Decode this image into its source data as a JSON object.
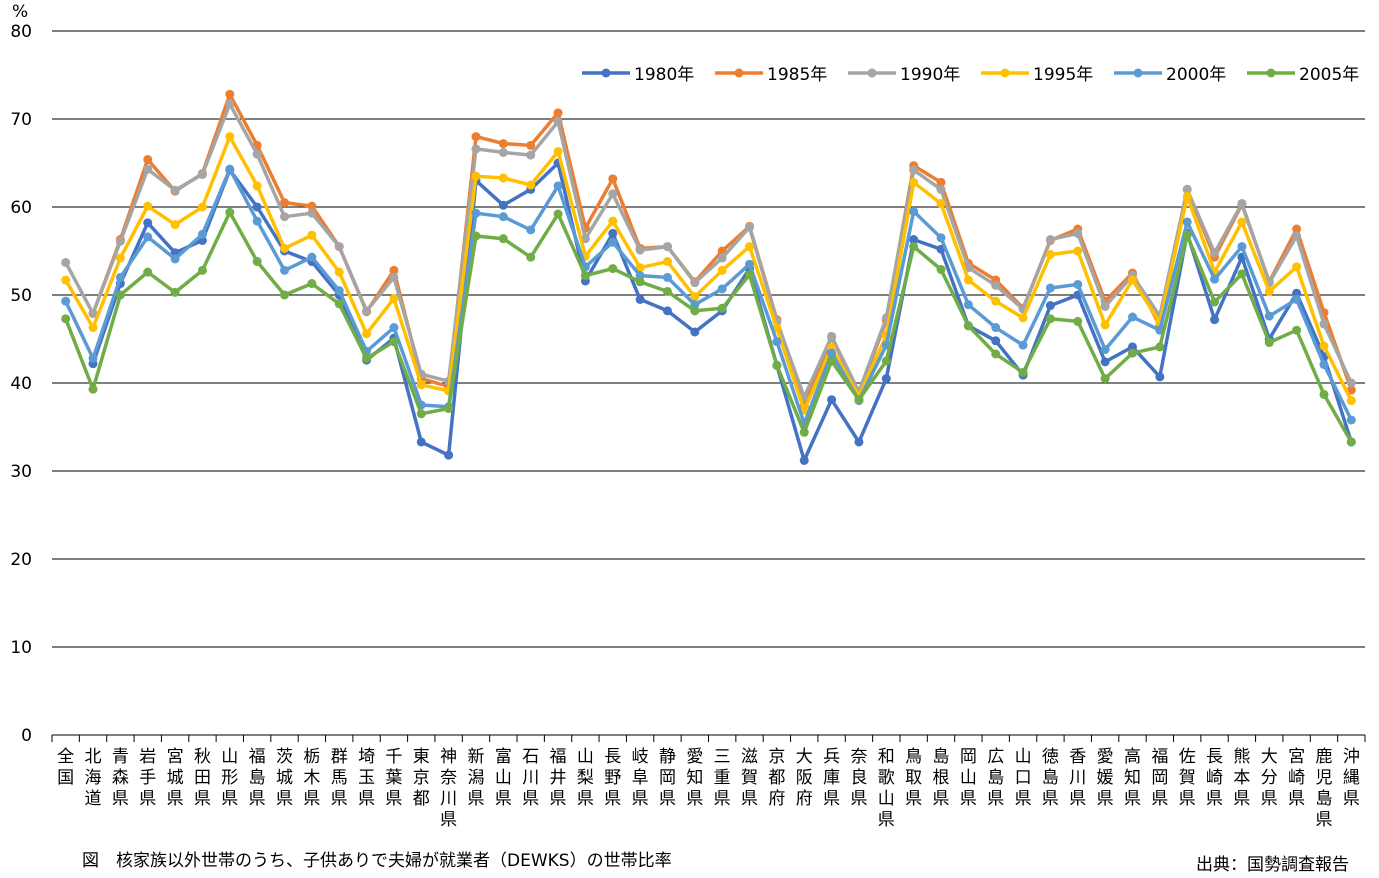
{
  "unit_label": "%",
  "caption": "図　核家族以外世帯のうち、子供ありで夫婦が就業者（DEWKS）の世帯比率",
  "source": "出典：国勢調査報告",
  "chart_data": {
    "type": "line",
    "ylabel": "%",
    "ylim": [
      0,
      80
    ],
    "yticks": [
      0,
      10,
      20,
      30,
      40,
      50,
      60,
      70,
      80
    ],
    "grid": true,
    "legend_position": "top-right",
    "categories": [
      "全国",
      "北海道",
      "青森県",
      "岩手県",
      "宮城県",
      "秋田県",
      "山形県",
      "福島県",
      "茨城県",
      "栃木県",
      "群馬県",
      "埼玉県",
      "千葉県",
      "東京都",
      "神奈川県",
      "新潟県",
      "富山県",
      "石川県",
      "福井県",
      "山梨県",
      "長野県",
      "岐阜県",
      "静岡県",
      "愛知県",
      "三重県",
      "滋賀県",
      "京都府",
      "大阪府",
      "兵庫県",
      "奈良県",
      "和歌山県",
      "鳥取県",
      "島根県",
      "岡山県",
      "広島県",
      "山口県",
      "徳島県",
      "香川県",
      "愛媛県",
      "高知県",
      "福岡県",
      "佐賀県",
      "長崎県",
      "熊本県",
      "大分県",
      "宮崎県",
      "鹿児島県",
      "沖縄県"
    ],
    "series": [
      {
        "name": "1980年",
        "color": "#4472C4",
        "values": [
          null,
          42.2,
          51.3,
          58.2,
          54.8,
          56.2,
          64.2,
          60.0,
          55.0,
          53.8,
          50.0,
          42.6,
          45.1,
          33.3,
          31.8,
          63.0,
          60.2,
          62.0,
          65.0,
          51.6,
          57.0,
          49.5,
          48.2,
          45.8,
          48.2,
          53.0,
          42.0,
          31.2,
          38.1,
          33.3,
          40.5,
          56.3,
          55.2,
          46.5,
          44.8,
          40.9,
          48.8,
          50.0,
          42.4,
          44.1,
          40.7,
          57.0,
          47.2,
          54.3,
          45.0,
          50.2,
          43.0,
          33.3
        ]
      },
      {
        "name": "1985年",
        "color": "#ED7D31",
        "values": [
          null,
          47.9,
          56.3,
          65.4,
          61.8,
          63.8,
          72.8,
          67.0,
          60.5,
          60.1,
          55.5,
          48.1,
          52.8,
          40.5,
          39.6,
          68.0,
          67.2,
          67.0,
          70.7,
          57.6,
          63.2,
          55.3,
          55.5,
          51.5,
          55.0,
          57.8,
          47.2,
          37.4,
          45.2,
          38.8,
          47.1,
          64.7,
          62.8,
          53.6,
          51.7,
          48.5,
          56.2,
          57.5,
          49.3,
          52.5,
          46.5,
          62.0,
          54.3,
          60.3,
          51.5,
          57.5,
          48.0,
          39.2
        ]
      },
      {
        "name": "1990年",
        "color": "#A5A5A5",
        "values": [
          53.7,
          47.9,
          56.1,
          64.3,
          61.9,
          63.7,
          71.7,
          66.0,
          58.9,
          59.3,
          55.5,
          48.2,
          52.0,
          41.0,
          40.2,
          66.6,
          66.2,
          65.9,
          69.7,
          56.4,
          61.5,
          55.1,
          55.5,
          51.4,
          54.2,
          57.7,
          47.0,
          38.4,
          45.3,
          39.0,
          47.4,
          64.2,
          62.0,
          53.1,
          51.1,
          48.4,
          56.3,
          57.0,
          48.7,
          52.2,
          47.6,
          62.0,
          54.8,
          60.4,
          51.4,
          56.7,
          46.7,
          40.0
        ]
      },
      {
        "name": "1995年",
        "color": "#FFC000",
        "values": [
          51.7,
          46.3,
          54.2,
          60.1,
          58.0,
          60.0,
          68.0,
          62.4,
          55.3,
          56.8,
          52.6,
          45.6,
          49.6,
          39.8,
          39.1,
          63.5,
          63.3,
          62.5,
          66.3,
          54.4,
          58.4,
          53.1,
          53.8,
          49.8,
          52.8,
          55.5,
          46.2,
          36.9,
          44.0,
          38.5,
          45.4,
          62.8,
          60.4,
          51.7,
          49.3,
          47.4,
          54.6,
          55.0,
          46.6,
          51.7,
          46.9,
          61.2,
          52.6,
          58.3,
          50.4,
          53.2,
          44.2,
          38.0
        ]
      },
      {
        "name": "2000年",
        "color": "#5B9BD5",
        "values": [
          49.3,
          42.8,
          52.0,
          56.6,
          54.1,
          56.9,
          64.3,
          58.4,
          52.8,
          54.3,
          50.5,
          43.6,
          46.3,
          37.5,
          37.3,
          59.3,
          58.9,
          57.4,
          62.4,
          53.2,
          56.0,
          52.2,
          52.0,
          48.9,
          50.7,
          53.5,
          44.7,
          35.4,
          43.4,
          38.0,
          44.3,
          59.5,
          56.5,
          48.9,
          46.3,
          44.3,
          50.8,
          51.2,
          43.8,
          47.5,
          46.0,
          58.3,
          51.8,
          55.5,
          47.6,
          49.5,
          42.1,
          35.8
        ]
      },
      {
        "name": "2005年",
        "color": "#70AD47",
        "values": [
          47.3,
          39.3,
          50.0,
          52.6,
          50.3,
          52.8,
          59.4,
          53.8,
          50.0,
          51.3,
          49.0,
          42.8,
          44.7,
          36.5,
          37.1,
          56.7,
          56.4,
          54.3,
          59.2,
          52.2,
          53.0,
          51.5,
          50.4,
          48.2,
          48.5,
          52.3,
          42.0,
          34.4,
          42.5,
          38.1,
          42.5,
          55.5,
          52.9,
          46.5,
          43.3,
          41.2,
          47.3,
          47.0,
          40.5,
          43.4,
          44.1,
          56.8,
          49.2,
          52.4,
          44.6,
          46.0,
          38.7,
          33.3
        ]
      }
    ]
  }
}
